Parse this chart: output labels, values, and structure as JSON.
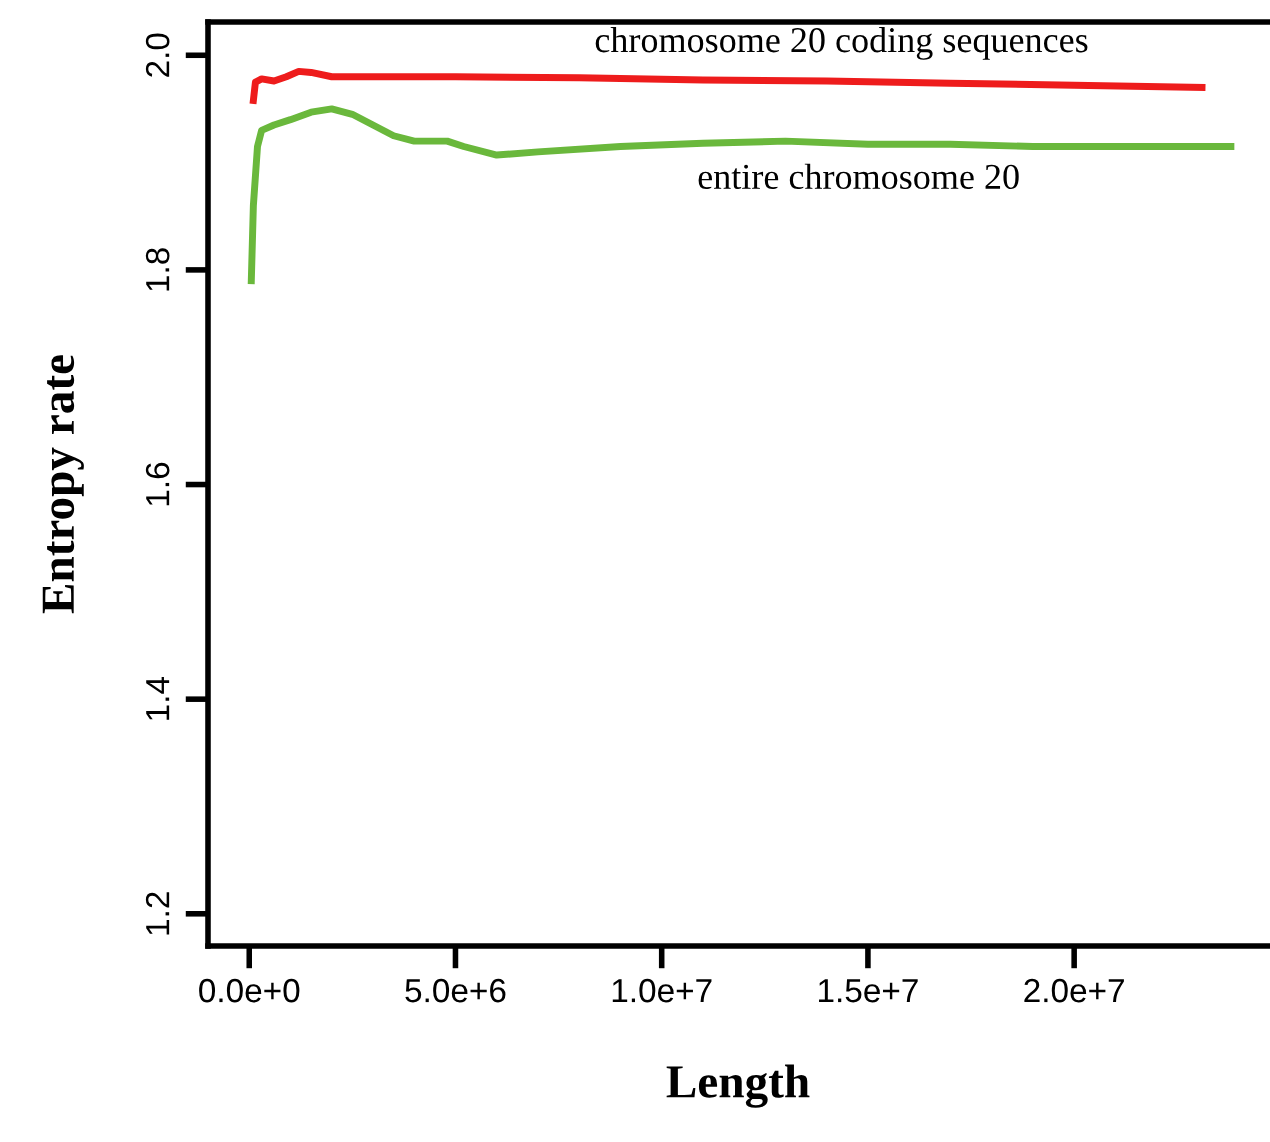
{
  "chart_data": {
    "type": "line",
    "xlabel": "Length",
    "ylabel": "Entropy rate",
    "xlim": [
      -1000000,
      24700000
    ],
    "ylim": [
      1.17,
      2.031
    ],
    "xticks": [
      {
        "value": 0,
        "label": "0.0e+0"
      },
      {
        "value": 5000000,
        "label": "5.0e+6"
      },
      {
        "value": 10000000,
        "label": "1.0e+7"
      },
      {
        "value": 15000000,
        "label": "1.5e+7"
      },
      {
        "value": 20000000,
        "label": "2.0e+7"
      }
    ],
    "yticks": [
      {
        "value": 1.2,
        "label": "1.2"
      },
      {
        "value": 1.4,
        "label": "1.4"
      },
      {
        "value": 1.6,
        "label": "1.6"
      },
      {
        "value": 1.8,
        "label": "1.8"
      },
      {
        "value": 2.0,
        "label": "2.0"
      }
    ],
    "grid": false,
    "legend": false,
    "marker": "none",
    "line_style": "solid",
    "series": [
      {
        "name": "chromosome 20 coding sequences",
        "color": "#ee1c1c",
        "x": [
          100000,
          150000,
          300000,
          600000,
          900000,
          1200000,
          1500000,
          2000000,
          3000000,
          5000000,
          8000000,
          11000000,
          14000000,
          17000000,
          20000000,
          23100000
        ],
        "values": [
          1.958,
          1.975,
          1.978,
          1.976,
          1.98,
          1.985,
          1.984,
          1.98,
          1.98,
          1.98,
          1.979,
          1.977,
          1.976,
          1.974,
          1.972,
          1.97
        ]
      },
      {
        "name": "entire chromosome 20",
        "color": "#6ab83c",
        "x": [
          50000,
          100000,
          200000,
          300000,
          600000,
          1000000,
          1500000,
          2000000,
          2500000,
          3000000,
          3500000,
          4000000,
          4800000,
          5200000,
          6000000,
          7000000,
          9000000,
          11000000,
          13000000,
          15000000,
          17000000,
          19000000,
          21000000,
          23800000
        ],
        "values": [
          1.79,
          1.86,
          1.915,
          1.93,
          1.935,
          1.94,
          1.947,
          1.95,
          1.945,
          1.935,
          1.925,
          1.92,
          1.92,
          1.915,
          1.907,
          1.91,
          1.915,
          1.918,
          1.92,
          1.917,
          1.917,
          1.915,
          1.915,
          1.915
        ]
      }
    ]
  }
}
